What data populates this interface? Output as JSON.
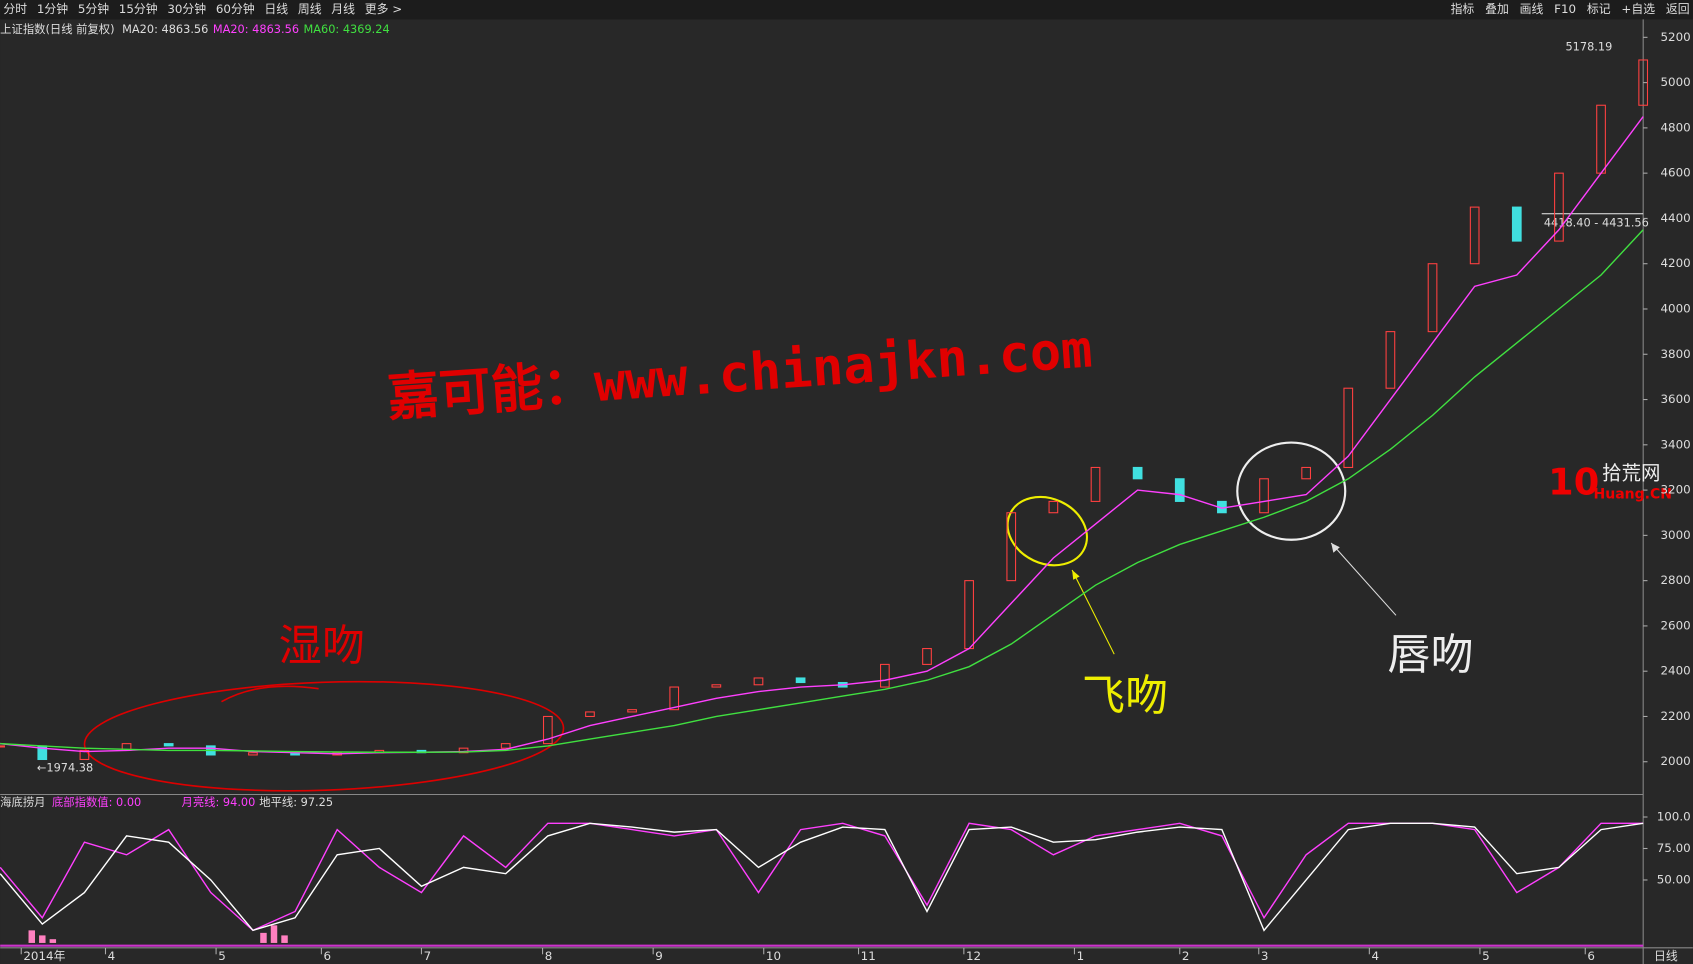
{
  "toolbar": {
    "left": [
      "分时",
      "1分钟",
      "5分钟",
      "15分钟",
      "30分钟",
      "60分钟",
      "日线",
      "周线",
      "月线",
      "更多 >"
    ],
    "right": [
      "指标",
      "叠加",
      "画线",
      "F10",
      "标记",
      "+自选",
      "返回"
    ]
  },
  "chart_data": [
    {
      "type": "candlestick",
      "title": "上证指数(日线 前复权)",
      "x": [
        0,
        8,
        16,
        24,
        32,
        40,
        48,
        56,
        64,
        72,
        80,
        88,
        96,
        104,
        112,
        120,
        128,
        136,
        144,
        152,
        160,
        168,
        176,
        184,
        192,
        200,
        208,
        216,
        224,
        232,
        240,
        248,
        256,
        264,
        272,
        280,
        288,
        296,
        304,
        312
      ],
      "xlim": [
        0,
        312
      ],
      "xticks": [
        {
          "value": 4,
          "label": "2014年"
        },
        {
          "value": 20,
          "label": "4"
        },
        {
          "value": 41,
          "label": "5"
        },
        {
          "value": 61,
          "label": "6"
        },
        {
          "value": 80,
          "label": "7"
        },
        {
          "value": 103,
          "label": "8"
        },
        {
          "value": 124,
          "label": "9"
        },
        {
          "value": 145,
          "label": "10"
        },
        {
          "value": 163,
          "label": "11"
        },
        {
          "value": 183,
          "label": "12"
        },
        {
          "value": 204,
          "label": "1"
        },
        {
          "value": 224,
          "label": "2"
        },
        {
          "value": 239,
          "label": "3"
        },
        {
          "value": 260,
          "label": "4"
        },
        {
          "value": 281,
          "label": "5"
        },
        {
          "value": 301,
          "label": "6"
        }
      ],
      "ylim": [
        1860,
        5260
      ],
      "yticks": [
        2000,
        2200,
        2400,
        2600,
        2800,
        3000,
        3200,
        3400,
        3600,
        3800,
        4000,
        4200,
        4400,
        4600,
        4800,
        5000,
        5200
      ],
      "series": [
        {
          "name": "close",
          "up_color": "#ff4040",
          "down_color": "#40e0e0",
          "values": [
            2070,
            2010,
            2050,
            2080,
            2070,
            2030,
            2040,
            2030,
            2040,
            2050,
            2040,
            2060,
            2080,
            2200,
            2220,
            2230,
            2330,
            2340,
            2370,
            2350,
            2330,
            2430,
            2500,
            2800,
            3100,
            3150,
            3300,
            3250,
            3150,
            3100,
            3250,
            3300,
            3650,
            3900,
            4200,
            4450,
            4300,
            4600,
            4900,
            5100
          ]
        },
        {
          "name": "MA20: 4863.56",
          "color": "#ff40ff",
          "values": [
            2080,
            2060,
            2045,
            2050,
            2060,
            2060,
            2045,
            2040,
            2035,
            2040,
            2042,
            2045,
            2055,
            2100,
            2160,
            2200,
            2240,
            2280,
            2310,
            2330,
            2340,
            2360,
            2400,
            2500,
            2700,
            2900,
            3050,
            3200,
            3180,
            3120,
            3150,
            3180,
            3350,
            3600,
            3850,
            4100,
            4150,
            4350,
            4600,
            4850
          ]
        },
        {
          "name": "MA60: 4369.24",
          "color": "#40e040",
          "values": [
            2080,
            2070,
            2060,
            2055,
            2050,
            2050,
            2048,
            2045,
            2043,
            2042,
            2042,
            2043,
            2050,
            2070,
            2100,
            2130,
            2160,
            2200,
            2230,
            2260,
            2290,
            2320,
            2360,
            2420,
            2520,
            2650,
            2780,
            2880,
            2960,
            3020,
            3080,
            3150,
            3250,
            3380,
            3530,
            3700,
            3850,
            4000,
            4150,
            4350
          ]
        }
      ],
      "header_extra": "MA20: 4863.56",
      "annotations": {
        "high": "5178.19",
        "range": "4418.40 - 4431.56",
        "low": "←1974.38",
        "watermark": "嘉可能：www.chinajkn.com",
        "wet": "湿吻",
        "fly": "飞吻",
        "lip": "唇吻",
        "logo_num": "10",
        "logo_text": "拾荒网",
        "logo_sub": "Huang.CN"
      }
    },
    {
      "type": "line",
      "title": "海底捞月",
      "x": [
        0,
        8,
        16,
        24,
        32,
        40,
        48,
        56,
        64,
        72,
        80,
        88,
        96,
        104,
        112,
        120,
        128,
        136,
        144,
        152,
        160,
        168,
        176,
        184,
        192,
        200,
        208,
        216,
        224,
        232,
        240,
        248,
        256,
        264,
        272,
        280,
        288,
        296,
        304,
        312
      ],
      "xlim": [
        0,
        312
      ],
      "ylim": [
        -3,
        117
      ],
      "yticks": [
        {
          "value": 100,
          "label": "100.0"
        },
        {
          "value": 75,
          "label": "75.00"
        },
        {
          "value": 50,
          "label": "50.00"
        }
      ],
      "series": [
        {
          "name": "底部指数值: 0.00",
          "color": "#ff40ff",
          "values": [
            60,
            20,
            80,
            70,
            90,
            40,
            10,
            25,
            90,
            60,
            40,
            85,
            60,
            95,
            95,
            90,
            85,
            90,
            40,
            90,
            95,
            85,
            30,
            95,
            90,
            70,
            85,
            90,
            95,
            85,
            20,
            70,
            95,
            95,
            95,
            90,
            40,
            60,
            95,
            95
          ]
        },
        {
          "name": "月亮线: 94.00",
          "color": "#ffffff",
          "values": [
            55,
            15,
            40,
            85,
            80,
            50,
            10,
            20,
            70,
            75,
            45,
            60,
            55,
            85,
            95,
            92,
            88,
            90,
            60,
            80,
            92,
            90,
            25,
            90,
            92,
            80,
            82,
            88,
            92,
            90,
            10,
            50,
            90,
            95,
            95,
            92,
            55,
            60,
            90,
            95
          ]
        }
      ],
      "horizon_label": "地平线: 97.25",
      "bars": {
        "color": "#ff80c0",
        "x": [
          6,
          8,
          10,
          50,
          52,
          54
        ],
        "values": [
          10,
          6,
          3,
          8,
          14,
          6
        ]
      },
      "period": "日线"
    }
  ]
}
